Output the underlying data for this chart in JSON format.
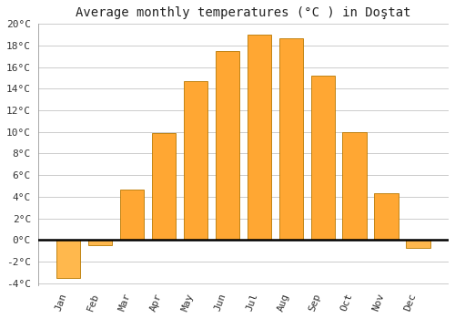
{
  "title": "Average monthly temperatures (°C ) in Doştat",
  "months": [
    "Jan",
    "Feb",
    "Mar",
    "Apr",
    "May",
    "Jun",
    "Jul",
    "Aug",
    "Sep",
    "Oct",
    "Nov",
    "Dec"
  ],
  "values": [
    -3.5,
    -0.5,
    4.7,
    9.9,
    14.7,
    17.5,
    19.0,
    18.7,
    15.2,
    10.0,
    4.3,
    -0.7
  ],
  "bar_color_pos": "#FFA733",
  "bar_color_neg": "#FFB84D",
  "edge_color": "#B87800",
  "ylim": [
    -4,
    20
  ],
  "yticks": [
    -4,
    -2,
    0,
    2,
    4,
    6,
    8,
    10,
    12,
    14,
    16,
    18,
    20
  ],
  "ytick_labels": [
    "-4°C",
    "-2°C",
    "0°C",
    "2°C",
    "4°C",
    "6°C",
    "8°C",
    "10°C",
    "12°C",
    "14°C",
    "16°C",
    "18°C",
    "20°C"
  ],
  "background_color": "#FFFFFF",
  "grid_color": "#CCCCCC",
  "title_fontsize": 10,
  "tick_fontsize": 8,
  "bar_width": 0.75
}
